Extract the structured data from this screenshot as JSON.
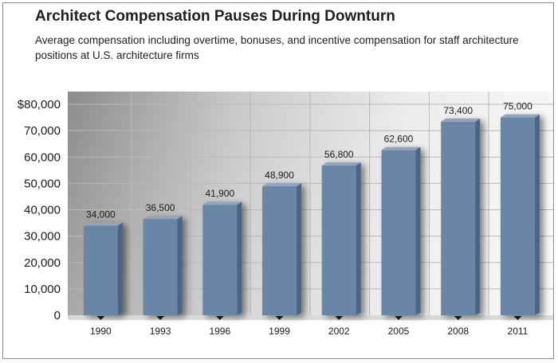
{
  "title": "Architect Compensation Pauses During Downturn",
  "subtitle": "Average compensation including overtime, bonuses, and incentive compensation for staff architecture positions at U.S. architecture firms",
  "colors": {
    "bar_front": "#6b86a6",
    "bar_side": "#4e6584",
    "bar_top": "#8fa5c0",
    "panel_dark": "#8c8c8c",
    "panel_light": "#f2f2f2",
    "grid": "#b9b9b9"
  },
  "chart_data": {
    "type": "bar",
    "categories": [
      "1990",
      "1993",
      "1996",
      "1999",
      "2002",
      "2005",
      "2008",
      "2011"
    ],
    "values": [
      34000,
      36500,
      41900,
      48900,
      56800,
      62600,
      73400,
      75000
    ],
    "value_labels": [
      "34,000",
      "36,500",
      "41,900",
      "48,900",
      "56,800",
      "62,600",
      "73,400",
      "75,000"
    ],
    "y_ticks": [
      0,
      10000,
      20000,
      30000,
      40000,
      50000,
      60000,
      70000,
      80000
    ],
    "y_tick_labels": [
      "0",
      "10,000",
      "20,000",
      "30,000",
      "40,000",
      "50,000",
      "60,000",
      "70,000",
      "$80,000"
    ],
    "ylim": [
      0,
      80000
    ],
    "grid": true,
    "legend": false
  }
}
